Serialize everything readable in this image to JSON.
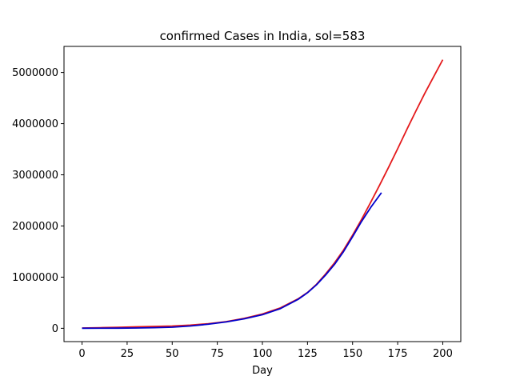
{
  "chart_data": {
    "type": "line",
    "title": "confirmed Cases in India, sol=583",
    "xlabel": "Day",
    "ylabel": "",
    "xlim": [
      -10,
      210
    ],
    "ylim": [
      -260000,
      5510000
    ],
    "xticks": [
      0,
      25,
      50,
      75,
      100,
      125,
      150,
      175,
      200
    ],
    "yticks": [
      0,
      1000000,
      2000000,
      3000000,
      4000000,
      5000000
    ],
    "grid": false,
    "series": [
      {
        "color": "#e41a1c",
        "x": [
          0,
          10,
          20,
          30,
          40,
          50,
          60,
          70,
          80,
          90,
          100,
          110,
          120,
          125,
          130,
          135,
          140,
          145,
          150,
          155,
          160,
          165,
          170,
          175,
          180,
          185,
          190,
          195,
          200
        ],
        "y": [
          5000,
          12000,
          20000,
          28000,
          36000,
          45000,
          62000,
          90000,
          130000,
          195000,
          280000,
          400000,
          580000,
          700000,
          860000,
          1060000,
          1280000,
          1530000,
          1820000,
          2130000,
          2460000,
          2800000,
          3150000,
          3510000,
          3880000,
          4240000,
          4590000,
          4920000,
          5250000
        ]
      },
      {
        "color": "#0000cc",
        "x": [
          0,
          10,
          20,
          30,
          40,
          50,
          60,
          70,
          80,
          90,
          100,
          110,
          120,
          125,
          130,
          135,
          140,
          145,
          150,
          155,
          160,
          166
        ],
        "y": [
          1000,
          2000,
          3000,
          6000,
          12000,
          22000,
          45000,
          80000,
          125000,
          185000,
          265000,
          385000,
          570000,
          695000,
          850000,
          1040000,
          1250000,
          1500000,
          1790000,
          2090000,
          2360000,
          2650000
        ]
      }
    ]
  }
}
